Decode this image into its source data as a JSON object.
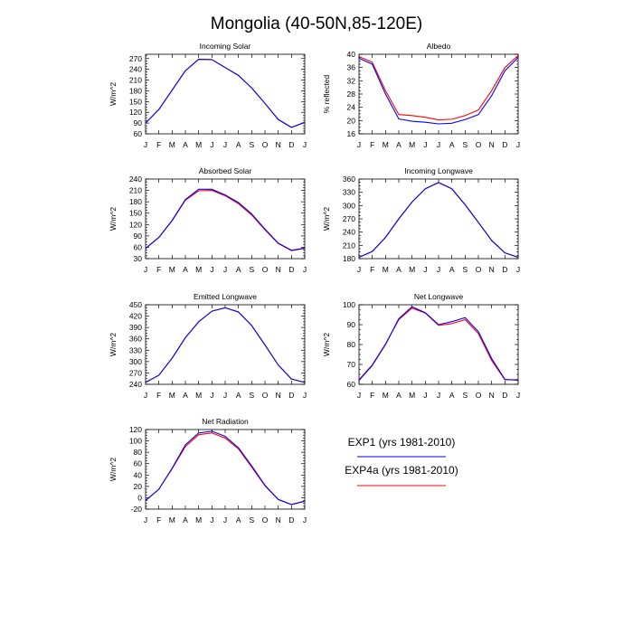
{
  "figure": {
    "title": "Mongolia (40-50N,85-120E)",
    "legend": [
      {
        "label": "EXP1 (yrs 1981-2010)",
        "color": "#0000ff"
      },
      {
        "label": "EXP4a (yrs 1981-2010)",
        "color": "#ff0000"
      }
    ]
  },
  "colors": {
    "exp1": "#0000ff",
    "exp4a": "#ff0000",
    "axis": "#000000"
  },
  "chart_data": [
    {
      "type": "line",
      "title": "Incoming Solar",
      "ylabel": "W/m^2",
      "xlabel": "",
      "categories": [
        "J",
        "F",
        "M",
        "A",
        "M",
        "J",
        "J",
        "A",
        "S",
        "O",
        "N",
        "D",
        "J"
      ],
      "yticks": [
        60,
        90,
        120,
        150,
        180,
        210,
        240,
        270
      ],
      "ylim": [
        60,
        282
      ],
      "series": [
        {
          "name": "EXP1 (yrs 1981-2010)",
          "values": [
            90,
            128,
            182,
            236,
            268,
            267,
            245,
            223,
            188,
            145,
            100,
            78,
            92
          ]
        },
        {
          "name": "EXP4a (yrs 1981-2010)",
          "values": [
            90,
            128,
            182,
            236,
            268,
            267,
            245,
            223,
            188,
            145,
            100,
            78,
            92
          ]
        }
      ]
    },
    {
      "type": "line",
      "title": "Albedo",
      "ylabel": "% reflected",
      "xlabel": "",
      "categories": [
        "J",
        "F",
        "M",
        "A",
        "M",
        "J",
        "J",
        "A",
        "S",
        "O",
        "N",
        "D",
        "J"
      ],
      "yticks": [
        16,
        20,
        24,
        28,
        32,
        36,
        40
      ],
      "ylim": [
        16,
        40
      ],
      "series": [
        {
          "name": "EXP1 (yrs 1981-2010)",
          "values": [
            38.8,
            37.0,
            28.0,
            20.5,
            19.8,
            19.5,
            19.0,
            19.2,
            20.3,
            21.8,
            27.5,
            35.0,
            39.0
          ]
        },
        {
          "name": "EXP4a (yrs 1981-2010)",
          "values": [
            39.3,
            37.6,
            29.0,
            21.8,
            21.5,
            21.0,
            20.2,
            20.4,
            21.5,
            23.2,
            29.0,
            36.0,
            39.6
          ]
        }
      ]
    },
    {
      "type": "line",
      "title": "Absorbed Solar",
      "ylabel": "W/m^2",
      "xlabel": "",
      "categories": [
        "J",
        "F",
        "M",
        "A",
        "M",
        "J",
        "J",
        "A",
        "S",
        "O",
        "N",
        "D",
        "J"
      ],
      "yticks": [
        30,
        60,
        90,
        120,
        150,
        180,
        210,
        240
      ],
      "ylim": [
        30,
        240
      ],
      "series": [
        {
          "name": "EXP1 (yrs 1981-2010)",
          "values": [
            57,
            86,
            131,
            186,
            213,
            213,
            198,
            178,
            148,
            108,
            71,
            52,
            58
          ]
        },
        {
          "name": "EXP4a (yrs 1981-2010)",
          "values": [
            57,
            86,
            130,
            184,
            209,
            210,
            196,
            175,
            145,
            106,
            70,
            51,
            57
          ]
        }
      ]
    },
    {
      "type": "line",
      "title": "Incoming Longwave",
      "ylabel": "W/m^2",
      "xlabel": "",
      "categories": [
        "J",
        "F",
        "M",
        "A",
        "M",
        "J",
        "J",
        "A",
        "S",
        "O",
        "N",
        "D",
        "J"
      ],
      "yticks": [
        180,
        210,
        240,
        270,
        300,
        330,
        360
      ],
      "ylim": [
        180,
        360
      ],
      "series": [
        {
          "name": "EXP1 (yrs 1981-2010)",
          "values": [
            183,
            196,
            228,
            270,
            308,
            338,
            352,
            338,
            302,
            262,
            221,
            193,
            183
          ]
        },
        {
          "name": "EXP4a (yrs 1981-2010)",
          "values": [
            183,
            196,
            228,
            270,
            308,
            338,
            352,
            338,
            302,
            262,
            221,
            193,
            183
          ]
        }
      ]
    },
    {
      "type": "line",
      "title": "Emitted Longwave",
      "ylabel": "W/m^2",
      "xlabel": "",
      "categories": [
        "J",
        "F",
        "M",
        "A",
        "M",
        "J",
        "J",
        "A",
        "S",
        "O",
        "N",
        "D",
        "J"
      ],
      "yticks": [
        240,
        270,
        300,
        330,
        360,
        390,
        420,
        450
      ],
      "ylim": [
        240,
        450
      ],
      "series": [
        {
          "name": "EXP1 (yrs 1981-2010)",
          "values": [
            245,
            264,
            309,
            363,
            405,
            433,
            442,
            431,
            395,
            344,
            291,
            254,
            245
          ]
        },
        {
          "name": "EXP4a (yrs 1981-2010)",
          "values": [
            245,
            264,
            309,
            363,
            405,
            433,
            442,
            431,
            395,
            344,
            291,
            254,
            245
          ]
        }
      ]
    },
    {
      "type": "line",
      "title": "Net Longwave",
      "ylabel": "W/m^2",
      "xlabel": "",
      "categories": [
        "J",
        "F",
        "M",
        "A",
        "M",
        "J",
        "J",
        "A",
        "S",
        "O",
        "N",
        "D",
        "J"
      ],
      "yticks": [
        60,
        70,
        80,
        90,
        100
      ],
      "ylim": [
        60,
        100
      ],
      "series": [
        {
          "name": "EXP1 (yrs 1981-2010)",
          "values": [
            62,
            69.5,
            80,
            93,
            99,
            96,
            90,
            91.5,
            93.5,
            86.5,
            73,
            62.5,
            62
          ]
        },
        {
          "name": "EXP4a (yrs 1981-2010)",
          "values": [
            62.3,
            69.8,
            80.3,
            92.5,
            98.3,
            95.8,
            89.6,
            90.5,
            92.5,
            85.5,
            72,
            62.3,
            62.3
          ]
        }
      ]
    },
    {
      "type": "line",
      "title": "Net Radiation",
      "ylabel": "W/m^2",
      "xlabel": "",
      "categories": [
        "J",
        "F",
        "M",
        "A",
        "M",
        "J",
        "J",
        "A",
        "S",
        "O",
        "N",
        "D",
        "J"
      ],
      "yticks": [
        -20,
        0,
        20,
        40,
        60,
        80,
        100,
        120
      ],
      "ylim": [
        -20,
        120
      ],
      "series": [
        {
          "name": "EXP1 (yrs 1981-2010)",
          "values": [
            -5,
            15,
            52,
            93,
            114,
            117,
            108,
            88,
            56,
            22,
            -3,
            -12,
            -6
          ]
        },
        {
          "name": "EXP4a (yrs 1981-2010)",
          "values": [
            -5,
            15,
            51,
            90,
            111,
            114,
            105,
            86,
            54,
            21,
            -3,
            -12,
            -6
          ]
        }
      ]
    }
  ]
}
